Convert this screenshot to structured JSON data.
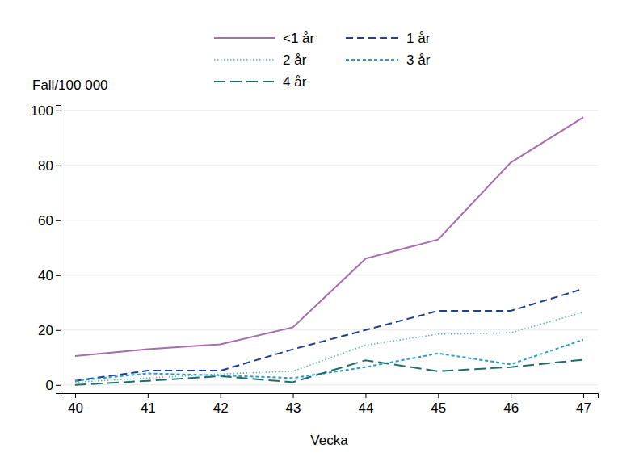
{
  "chart_data": {
    "type": "line",
    "x_label": "Vecka",
    "y_label": "Fall/100 000",
    "x": [
      40,
      41,
      42,
      43,
      44,
      45,
      46,
      47
    ],
    "xlim": [
      39.8,
      47.2
    ],
    "xticks": [
      40,
      41,
      42,
      43,
      44,
      45,
      46,
      47
    ],
    "ylim": [
      -3,
      102
    ],
    "yticks": [
      0,
      20,
      40,
      60,
      80,
      100
    ],
    "grid": true,
    "legend": "top",
    "series": [
      {
        "name": "<1 år",
        "color": "#a66dad",
        "line_style": "solid",
        "values": [
          10.5,
          13,
          14.8,
          21,
          46,
          53,
          81,
          97.5
        ]
      },
      {
        "name": "1 år",
        "color": "#1f3f8f",
        "line_style": "dash",
        "values": [
          1.5,
          5.2,
          5.2,
          13,
          20,
          27,
          27,
          35
        ]
      },
      {
        "name": "2 år",
        "color": "#5fb8a8",
        "line_style": "dot",
        "values": [
          1,
          2.5,
          4,
          5,
          14.5,
          18.5,
          19,
          26.5
        ]
      },
      {
        "name": "3 år",
        "color": "#2a9bd0",
        "line_style": "shortdash",
        "values": [
          1.5,
          4.2,
          3.5,
          2.5,
          6.5,
          11.5,
          7.5,
          16.5
        ]
      },
      {
        "name": "4 år",
        "color": "#1f6e6a",
        "line_style": "longdash",
        "values": [
          0,
          1.5,
          3.2,
          1,
          9,
          5,
          6.5,
          9.2
        ]
      }
    ]
  }
}
